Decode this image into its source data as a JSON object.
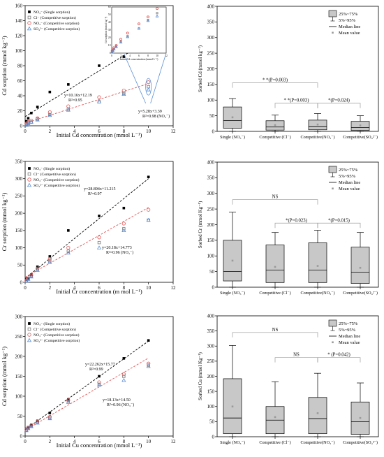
{
  "scatter_plots": [
    {
      "type": "scatter",
      "xlabel": "Initial Cd concentration (mmol L⁻¹)",
      "ylabel": "Cd sorption (mmol kg⁻¹)",
      "xlim": [
        0,
        12
      ],
      "ylim": [
        0,
        160
      ],
      "xticks": [
        0,
        2,
        4,
        6,
        8,
        10,
        12
      ],
      "yticks": [
        0,
        20,
        40,
        60,
        80,
        100,
        120,
        140,
        160
      ],
      "x": [
        0.1,
        0.25,
        0.5,
        1,
        2,
        3.5,
        6,
        8,
        10
      ],
      "legend": [
        {
          "label": "NO₃⁻ (Single sorption)",
          "marker": "square-filled",
          "color": "#000000"
        },
        {
          "label": "Cl⁻ (Competitive sorption)",
          "marker": "square-open",
          "color": "#7a7a7a"
        },
        {
          "label": "NO₃⁻ (Competitive sorption)",
          "marker": "circle-open",
          "color": "#e05555"
        },
        {
          "label": "SO₄²⁻ (Competitive sorption)",
          "marker": "triangle-open",
          "color": "#5a8fd6"
        }
      ],
      "series": [
        {
          "values": [
            6,
            10,
            17,
            25,
            45,
            55,
            80,
            92,
            105
          ]
        },
        {
          "values": [
            2,
            4,
            5,
            9,
            15,
            22,
            32,
            43,
            52
          ]
        },
        {
          "values": [
            3,
            5,
            7,
            10,
            18,
            26,
            38,
            47,
            58
          ]
        },
        {
          "values": [
            1,
            3,
            5,
            8,
            14,
            21,
            32,
            42,
            48
          ]
        }
      ],
      "fits": [
        {
          "slope": 10.16,
          "intercept": 12.19,
          "color": "#000000",
          "x_range": [
            0,
            10
          ],
          "eq": "y=10.16x+12.19",
          "r2": "R²=0.95"
        },
        {
          "slope": 5.28,
          "intercept": 3.39,
          "color": "#e05555",
          "x_range": [
            0,
            10
          ],
          "eq": "y=5.28x+3.39",
          "r2": "R²=0.98 (NO₃⁻)"
        }
      ],
      "inset": {
        "xlim": [
          0,
          12
        ],
        "ylim": [
          0,
          60
        ],
        "xticks": [
          0,
          2,
          4,
          6,
          8,
          10,
          12
        ],
        "yticks": [
          0,
          10,
          20,
          30,
          40,
          50,
          60
        ],
        "xlabel": "Initial Cd concentration (mmol L⁻¹)",
        "ylabel": "Cd sorption (mmol kg⁻¹)",
        "series": [
          {
            "values": [
              2,
              4,
              5,
              9,
              15,
              22,
              32,
              43,
              52
            ]
          },
          {
            "values": [
              3,
              5,
              7,
              10,
              18,
              26,
              38,
              47,
              58
            ]
          },
          {
            "values": [
              1,
              3,
              5,
              8,
              14,
              21,
              32,
              42,
              48
            ]
          }
        ]
      }
    },
    {
      "type": "scatter",
      "xlabel": "Initial Cr concentration (m mol L⁻¹)",
      "ylabel": "Cr sorption (mmol kg⁻¹)",
      "xlim": [
        0,
        12
      ],
      "ylim": [
        0,
        350
      ],
      "xticks": [
        0,
        2,
        4,
        6,
        8,
        10,
        12
      ],
      "yticks": [
        0,
        50,
        100,
        150,
        200,
        250,
        300,
        350
      ],
      "x": [
        0.1,
        0.25,
        0.5,
        1,
        2,
        3.5,
        6,
        8,
        10
      ],
      "legend": [
        {
          "label": "NO₃⁻ (Single sorption)",
          "marker": "square-filled",
          "color": "#000000"
        },
        {
          "label": "Cl⁻ (Competitive sorption)",
          "marker": "square-open",
          "color": "#7a7a7a"
        },
        {
          "label": "NO₃⁻ (Competitive sorption)",
          "marker": "circle-open",
          "color": "#e05555"
        },
        {
          "label": "SO₄²⁻ (Competitive sorption)",
          "marker": "triangle-open",
          "color": "#5a8fd6"
        }
      ],
      "series": [
        {
          "values": [
            8,
            12,
            22,
            45,
            75,
            150,
            192,
            215,
            305
          ]
        },
        {
          "values": [
            5,
            10,
            18,
            38,
            62,
            90,
            115,
            155,
            180
          ]
        },
        {
          "values": [
            6,
            11,
            20,
            40,
            68,
            100,
            130,
            170,
            210
          ]
        },
        {
          "values": [
            4,
            9,
            16,
            35,
            58,
            85,
            100,
            150,
            180
          ]
        }
      ],
      "fits": [
        {
          "slope": 28.894,
          "intercept": 11.215,
          "color": "#000000",
          "x_range": [
            0,
            10
          ],
          "eq": "y=28.894x+11.215",
          "r2": "R²=0.97"
        },
        {
          "slope": 20.18,
          "intercept": 14.773,
          "color": "#e05555",
          "x_range": [
            0,
            10
          ],
          "eq": "y=20.18x+14.773",
          "r2": "R²=0.96 (NO₃⁻)"
        }
      ]
    },
    {
      "type": "scatter",
      "xlabel": "Initial Cu concentration (mmol L⁻¹)",
      "ylabel": "Cd sorption (mmol kg⁻¹)",
      "xlim": [
        0,
        12
      ],
      "ylim": [
        0,
        300
      ],
      "xticks": [
        0,
        2,
        4,
        6,
        8,
        10,
        12
      ],
      "yticks": [
        0,
        50,
        100,
        150,
        200,
        250,
        300
      ],
      "x": [
        0.1,
        0.25,
        0.5,
        1,
        2,
        3.5,
        6,
        8,
        10
      ],
      "legend": [
        {
          "label": "NO₃⁻ (Single sorption)",
          "marker": "square-filled",
          "color": "#000000"
        },
        {
          "label": "Cl⁻ (Competitive sorption)",
          "marker": "square-open",
          "color": "#7a7a7a"
        },
        {
          "label": "NO₃⁻ (Competitive sorption)",
          "marker": "circle-open",
          "color": "#e05555"
        },
        {
          "label": "SO₄²⁻ (Competitive sorption)",
          "marker": "triangle-open",
          "color": "#5a8fd6"
        }
      ],
      "series": [
        {
          "values": [
            18,
            22,
            28,
            38,
            58,
            92,
            150,
            195,
            240
          ]
        },
        {
          "values": [
            15,
            20,
            25,
            35,
            45,
            88,
            130,
            150,
            178
          ]
        },
        {
          "values": [
            16,
            21,
            27,
            36,
            48,
            90,
            135,
            155,
            182
          ]
        },
        {
          "values": [
            14,
            19,
            24,
            33,
            44,
            85,
            128,
            140,
            175
          ]
        }
      ],
      "fits": [
        {
          "slope": 22.262,
          "intercept": 15.77,
          "color": "#000000",
          "x_range": [
            0,
            10
          ],
          "eq": "y=22.262x+15.77",
          "r2": "R²=0.99"
        },
        {
          "slope": 18.13,
          "intercept": 14.5,
          "color": "#e05555",
          "x_range": [
            0,
            10
          ],
          "eq": "y=18.13x+14.50",
          "r2": "R²=0.96 (NO₃⁻)"
        }
      ]
    }
  ],
  "box_plots": [
    {
      "type": "box",
      "ylabel": "Sorbed Cd (mmol kg⁻¹)",
      "ylim": [
        0,
        400
      ],
      "yticks": [
        0,
        50,
        100,
        150,
        200,
        250,
        300,
        350,
        400
      ],
      "categories": [
        "Single (NO₃⁻)",
        "Competitive (Cl⁻)",
        "Competitive(NO₃⁻)",
        "Competitive(SO₄²⁻)"
      ],
      "legend": {
        "box": "25%~75%",
        "whisker": "5%~95%",
        "median": "Median line",
        "mean": "Mean value"
      },
      "boxes": [
        {
          "low": 0,
          "q1": 10,
          "median": 35,
          "q3": 78,
          "high": 105,
          "mean": 45
        },
        {
          "low": 0,
          "q1": 4,
          "median": 14,
          "q3": 34,
          "high": 52,
          "mean": 20
        },
        {
          "low": 0,
          "q1": 5,
          "median": 15,
          "q3": 36,
          "high": 57,
          "mean": 22
        },
        {
          "low": 0,
          "q1": 3,
          "median": 12,
          "q3": 32,
          "high": 50,
          "mean": 19
        }
      ],
      "comparisons": [
        {
          "from": 0,
          "to": 2,
          "label": "* *(P=0.003)",
          "y": 155
        },
        {
          "from": 1,
          "to": 2,
          "label": "* *(P=0.003)",
          "y": 90
        },
        {
          "from": 2,
          "to": 3,
          "label": "*(P=0.024)",
          "y": 90
        }
      ]
    },
    {
      "type": "box",
      "ylabel": "Sorbed Cr (mmol Kg⁻¹)",
      "ylim": [
        0,
        400
      ],
      "yticks": [
        0,
        50,
        100,
        150,
        200,
        250,
        300,
        350,
        400
      ],
      "categories": [
        "Single (NO₃⁻)",
        "Competitive (Cl⁻)",
        "Competitive(NO₃⁻)",
        "Competitive(SO₄²⁻)"
      ],
      "legend": {
        "box": "25%~75%",
        "whisker": "5%~95%",
        "median": "Median line",
        "mean": "Mean value"
      },
      "boxes": [
        {
          "low": 0,
          "q1": 20,
          "median": 50,
          "q3": 150,
          "high": 240,
          "mean": 85
        },
        {
          "low": 0,
          "q1": 15,
          "median": 55,
          "q3": 135,
          "high": 175,
          "mean": 65
        },
        {
          "low": 0,
          "q1": 15,
          "median": 55,
          "q3": 142,
          "high": 182,
          "mean": 68
        },
        {
          "low": 0,
          "q1": 12,
          "median": 48,
          "q3": 128,
          "high": 175,
          "mean": 62
        }
      ],
      "comparisons": [
        {
          "from": 0,
          "to": 2,
          "label": "NS",
          "y": 280
        },
        {
          "from": 1,
          "to": 2,
          "label": "*(P=0.023)",
          "y": 205
        },
        {
          "from": 2,
          "to": 3,
          "label": "*(P=0.015)",
          "y": 205
        }
      ]
    },
    {
      "type": "box",
      "ylabel": "Sorbed Cu (mmol Kg⁻¹)",
      "ylim": [
        0,
        400
      ],
      "yticks": [
        0,
        50,
        100,
        150,
        200,
        250,
        300,
        350,
        400
      ],
      "categories": [
        "Single (NO₃⁻)",
        "Competitive (Cl⁻)",
        "Competitive(NO₃⁻)",
        "Competitive(SO₄²⁻)"
      ],
      "legend": {
        "box": "25%~75%",
        "whisker": "5%~95%",
        "median": "Median line",
        "mean": "Mean value"
      },
      "boxes": [
        {
          "low": 0,
          "q1": 10,
          "median": 62,
          "q3": 192,
          "high": 302,
          "mean": 100
        },
        {
          "low": 0,
          "q1": 10,
          "median": 55,
          "q3": 100,
          "high": 182,
          "mean": 65
        },
        {
          "low": 0,
          "q1": 10,
          "median": 60,
          "q3": 130,
          "high": 210,
          "mean": 78
        },
        {
          "low": 0,
          "q1": 8,
          "median": 50,
          "q3": 115,
          "high": 178,
          "mean": 62
        }
      ],
      "comparisons": [
        {
          "from": 0,
          "to": 2,
          "label": "NS",
          "y": 345
        },
        {
          "from": 1,
          "to": 2,
          "label": "NS",
          "y": 262
        },
        {
          "from": 2,
          "to": 3,
          "label": "* (P=0.042)",
          "y": 262
        }
      ]
    }
  ]
}
